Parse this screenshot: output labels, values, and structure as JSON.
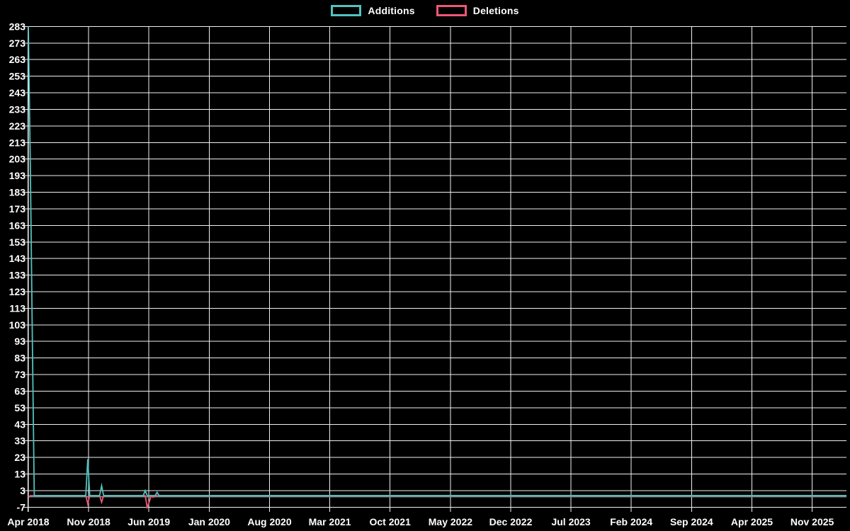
{
  "page": {
    "background": "#000000"
  },
  "legend": {
    "items": [
      {
        "label": "Additions",
        "color": "#52c2bf"
      },
      {
        "label": "Deletions",
        "color": "#ef5777"
      }
    ]
  },
  "chart_data": {
    "type": "line",
    "title": "",
    "xlabel": "",
    "ylabel": "",
    "grid": true,
    "legend_position": "top-center",
    "colors": {
      "background": "#000000",
      "grid": "#f0f0f0",
      "axis": "#ffffff",
      "text": "#ffffff",
      "zero_line": "#7f9596",
      "additions": "#52c2bf",
      "deletions": "#ef5777"
    },
    "x_axis": {
      "tick_labels": [
        "Apr 2018",
        "Nov 2018",
        "Jun 2019",
        "Jan 2020",
        "Aug 2020",
        "Mar 2021",
        "Oct 2021",
        "May 2022",
        "Dec 2022",
        "Jul 2023",
        "Feb 2024",
        "Sep 2024",
        "Apr 2025",
        "Nov 2025"
      ],
      "tick_interval_months": 7,
      "range_weeks": [
        0,
        413
      ]
    },
    "y_axis": {
      "tick_values": [
        283,
        273,
        263,
        253,
        243,
        233,
        223,
        213,
        203,
        193,
        183,
        173,
        163,
        153,
        143,
        133,
        123,
        113,
        103,
        93,
        83,
        73,
        63,
        53,
        43,
        33,
        23,
        13,
        3,
        -7
      ],
      "range": [
        -7,
        283
      ],
      "tick_step": 10
    },
    "series": [
      {
        "name": "Additions",
        "color": "#52c2bf",
        "default_value": 0,
        "points_weekly_nonzero": [
          [
            0,
            283
          ],
          [
            1,
            200
          ],
          [
            2,
            97
          ],
          [
            30,
            22
          ],
          [
            37,
            6
          ],
          [
            59,
            3
          ],
          [
            65,
            2
          ]
        ]
      },
      {
        "name": "Deletions",
        "color": "#ef5777",
        "default_value": 0,
        "points_weekly_nonzero": [
          [
            0,
            -1
          ],
          [
            30,
            -5
          ],
          [
            37,
            -4
          ],
          [
            60,
            -7
          ],
          [
            61,
            -4
          ],
          [
            63,
            -1
          ]
        ]
      }
    ]
  }
}
